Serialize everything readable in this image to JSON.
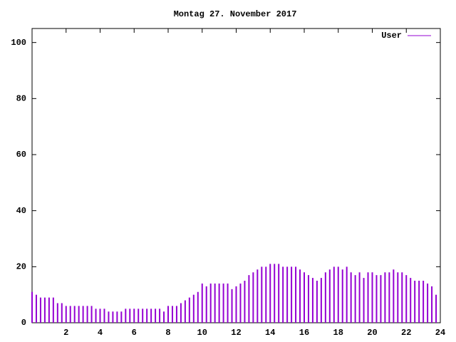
{
  "chart_data": {
    "type": "impulses",
    "title": "Montag 27. November 2017",
    "x": [
      0,
      0.25,
      0.5,
      0.75,
      1,
      1.25,
      1.5,
      1.75,
      2,
      2.25,
      2.5,
      2.75,
      3,
      3.25,
      3.5,
      3.75,
      4,
      4.25,
      4.5,
      4.75,
      5,
      5.25,
      5.5,
      5.75,
      6,
      6.25,
      6.5,
      6.75,
      7,
      7.25,
      7.5,
      7.75,
      8,
      8.25,
      8.5,
      8.75,
      9,
      9.25,
      9.5,
      9.75,
      10,
      10.25,
      10.5,
      10.75,
      11,
      11.25,
      11.5,
      11.75,
      12,
      12.25,
      12.5,
      12.75,
      13,
      13.25,
      13.5,
      13.75,
      14,
      14.25,
      14.5,
      14.75,
      15,
      15.25,
      15.5,
      15.75,
      16,
      16.25,
      16.5,
      16.75,
      17,
      17.25,
      17.5,
      17.75,
      18,
      18.25,
      18.5,
      18.75,
      19,
      19.25,
      19.5,
      19.75,
      20,
      20.25,
      20.5,
      20.75,
      21,
      21.25,
      21.5,
      21.75,
      22,
      22.25,
      22.5,
      22.75,
      23,
      23.25,
      23.5,
      23.75
    ],
    "series": [
      {
        "name": "User",
        "color": "#9400d3",
        "values": [
          11,
          10,
          9,
          9,
          9,
          9,
          7,
          7,
          6,
          6,
          6,
          6,
          6,
          6,
          6,
          5,
          5,
          5,
          4,
          4,
          4,
          4,
          5,
          5,
          5,
          5,
          5,
          5,
          5,
          5,
          5,
          4,
          6,
          6,
          6,
          7,
          8,
          9,
          10,
          11,
          14,
          13,
          14,
          14,
          14,
          14,
          14,
          12,
          13,
          14,
          15,
          17,
          18,
          19,
          20,
          20,
          21,
          21,
          21,
          20,
          20,
          20,
          20,
          19,
          18,
          17,
          16,
          15,
          16,
          18,
          19,
          20,
          20,
          19,
          20,
          18,
          17,
          18,
          16,
          18,
          18,
          17,
          17,
          18,
          18,
          19,
          18,
          18,
          17,
          16,
          15,
          15,
          15,
          14,
          13,
          10
        ]
      }
    ],
    "xlim": [
      0,
      24
    ],
    "xticks": [
      2,
      4,
      6,
      8,
      10,
      12,
      14,
      16,
      18,
      20,
      22,
      24
    ],
    "ylim": [
      0,
      105
    ],
    "yticks": [
      0,
      20,
      40,
      60,
      80,
      100
    ]
  }
}
